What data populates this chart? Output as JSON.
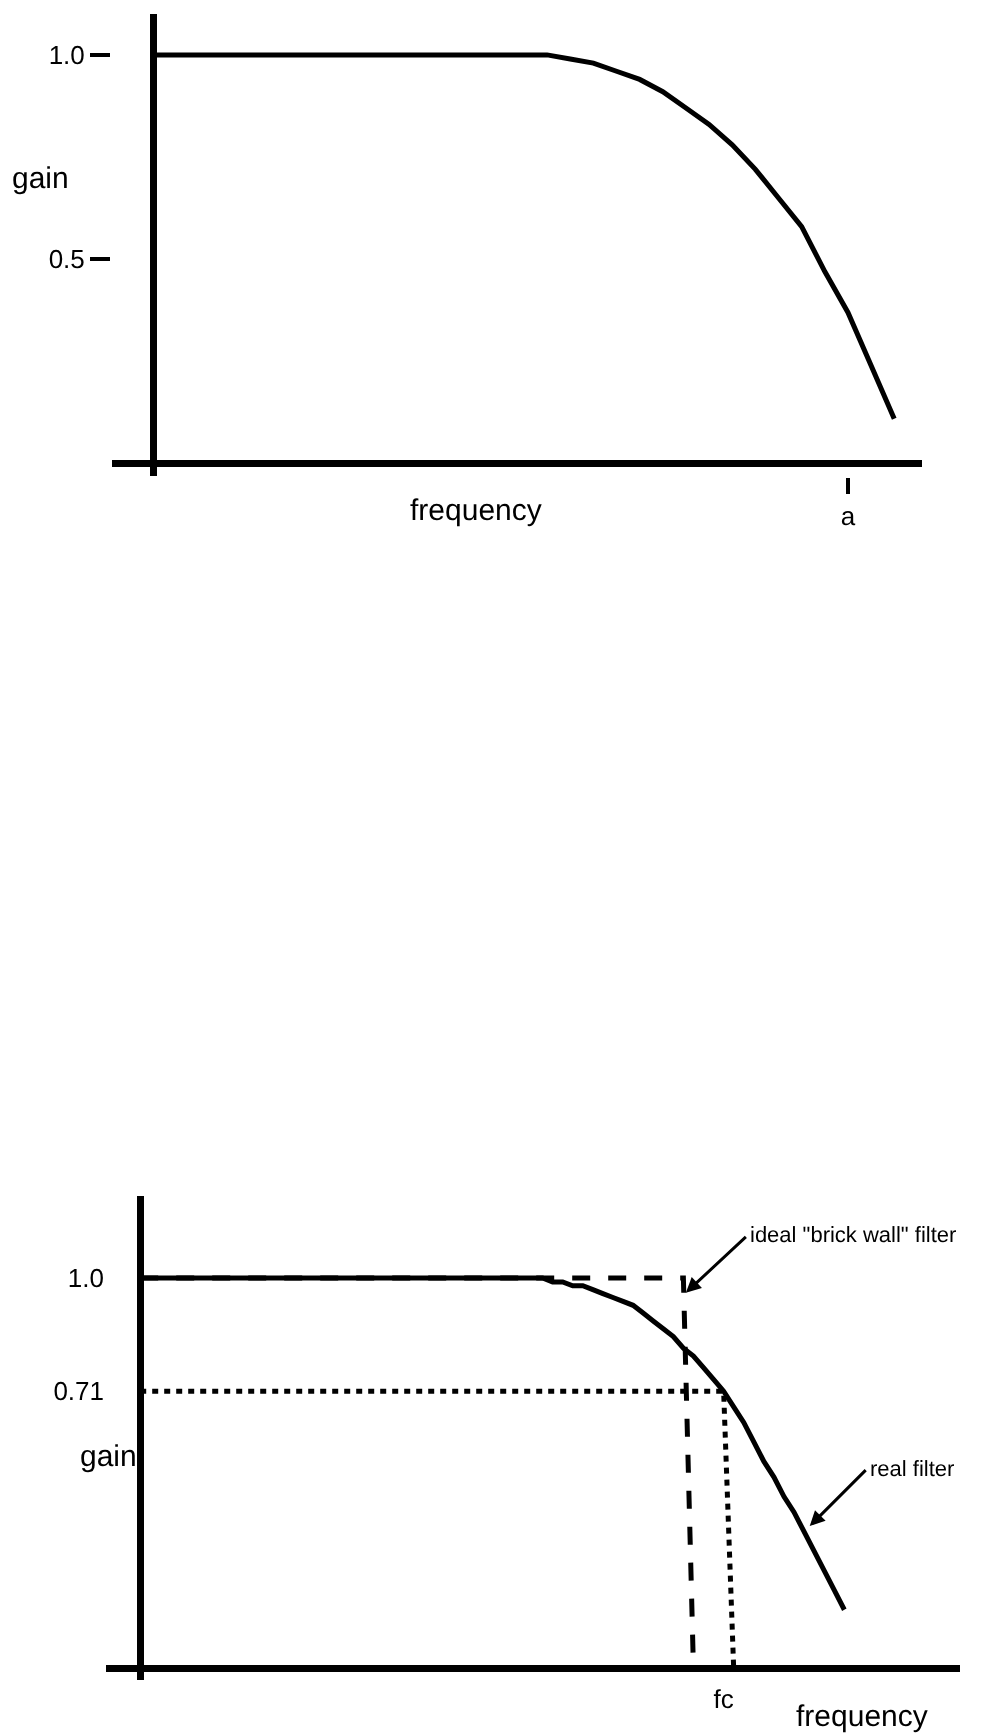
{
  "chart_data": [
    {
      "type": "line",
      "xlabel": "frequency",
      "ylabel": "gain",
      "ylim": [
        -0.03,
        1.1
      ],
      "yticks": [
        {
          "value": 0.5,
          "label": "0.5"
        },
        {
          "value": 1,
          "label": "1.0"
        }
      ],
      "categories": [
        null,
        null,
        null,
        null,
        null,
        null,
        null,
        null,
        null,
        null,
        null,
        null,
        null,
        null,
        null,
        null,
        null,
        null,
        null,
        null,
        null,
        null,
        null,
        null,
        null,
        null,
        null,
        null,
        null,
        null,
        "a",
        null,
        null
      ],
      "series": [
        {
          "color": "#000000",
          "line_style": "solid",
          "values": [
            1,
            1,
            1,
            1,
            1,
            1,
            1,
            1,
            1,
            1,
            1,
            1,
            1,
            1,
            1,
            1,
            1,
            1,
            0.99,
            0.98,
            0.96,
            0.94,
            0.91,
            0.87,
            0.83,
            0.78,
            0.72,
            0.65,
            0.58,
            0.47,
            0.37,
            0.24,
            0.11
          ]
        }
      ]
    },
    {
      "type": "line",
      "xlabel": "frequency",
      "ylabel": "gain",
      "ylim": [
        -0.03,
        1.21
      ],
      "yticks": [
        {
          "value": 0.71,
          "label": "0.71"
        },
        {
          "value": 1,
          "label": "1.0"
        }
      ],
      "categories": [
        null,
        null,
        null,
        null,
        null,
        null,
        null,
        null,
        null,
        null,
        null,
        null,
        null,
        null,
        null,
        null,
        null,
        null,
        null,
        null,
        null,
        null,
        null,
        null,
        null,
        null,
        null,
        null,
        null,
        null,
        null,
        null,
        null,
        null,
        null,
        null,
        null,
        null,
        null,
        null,
        null,
        null,
        null,
        null,
        null,
        null,
        null,
        null,
        null,
        null,
        null,
        null,
        null,
        null,
        null,
        null,
        null,
        null,
        "fc",
        null,
        null,
        null,
        null,
        null,
        null,
        null,
        null,
        null,
        null,
        null,
        null
      ],
      "series": [
        {
          "color": "#000000",
          "line_style": "solid",
          "values": [
            1,
            1,
            1,
            1,
            1,
            1,
            1,
            1,
            1,
            1,
            1,
            1,
            1,
            1,
            1,
            1,
            1,
            1,
            1,
            1,
            1,
            1,
            1,
            1,
            1,
            1,
            1,
            1,
            1,
            1,
            1,
            1,
            1,
            1,
            1,
            1,
            1,
            1,
            1,
            1,
            1,
            0.99,
            0.99,
            0.98,
            0.98,
            0.97,
            0.96,
            0.95,
            0.94,
            0.93,
            0.91,
            0.89,
            0.87,
            0.85,
            0.82,
            0.8,
            0.77,
            0.74,
            0.71,
            0.67,
            0.63,
            0.58,
            0.53,
            0.49,
            0.44,
            0.4,
            0.35,
            0.3,
            0.25,
            0.2,
            0.15
          ]
        },
        {
          "color": "#000000",
          "line_style": "dashed",
          "values": [
            1,
            1,
            1,
            1,
            1,
            1,
            1,
            1,
            1,
            1,
            1,
            1,
            1,
            1,
            1,
            1,
            1,
            1,
            1,
            1,
            1,
            1,
            1,
            1,
            1,
            1,
            1,
            1,
            1,
            1,
            1,
            1,
            1,
            1,
            1,
            1,
            1,
            1,
            1,
            1,
            1,
            1,
            1,
            1,
            1,
            1,
            1,
            1,
            1,
            1,
            1,
            1,
            1,
            1,
            1,
            0,
            null,
            null,
            null,
            null,
            null,
            null,
            null,
            null,
            null,
            null,
            null,
            null,
            null,
            null,
            null
          ]
        },
        {
          "color": "#000000",
          "line_style": "dotted",
          "values": [
            0.71,
            0.71,
            0.71,
            0.71,
            0.71,
            0.71,
            0.71,
            0.71,
            0.71,
            0.71,
            0.71,
            0.71,
            0.71,
            0.71,
            0.71,
            0.71,
            0.71,
            0.71,
            0.71,
            0.71,
            0.71,
            0.71,
            0.71,
            0.71,
            0.71,
            0.71,
            0.71,
            0.71,
            0.71,
            0.71,
            0.71,
            0.71,
            0.71,
            0.71,
            0.71,
            0.71,
            0.71,
            0.71,
            0.71,
            0.71,
            0.71,
            0.71,
            0.71,
            0.71,
            0.71,
            0.71,
            0.71,
            0.71,
            0.71,
            0.71,
            0.71,
            0.71,
            0.71,
            0.71,
            0.71,
            0.71,
            0.71,
            0.71,
            0.71,
            0,
            null,
            null,
            null,
            null,
            null,
            null,
            null,
            null,
            null,
            null,
            null
          ]
        }
      ],
      "annotations": [
        "ideal \"brick wall\" filter",
        "real filter"
      ]
    }
  ]
}
